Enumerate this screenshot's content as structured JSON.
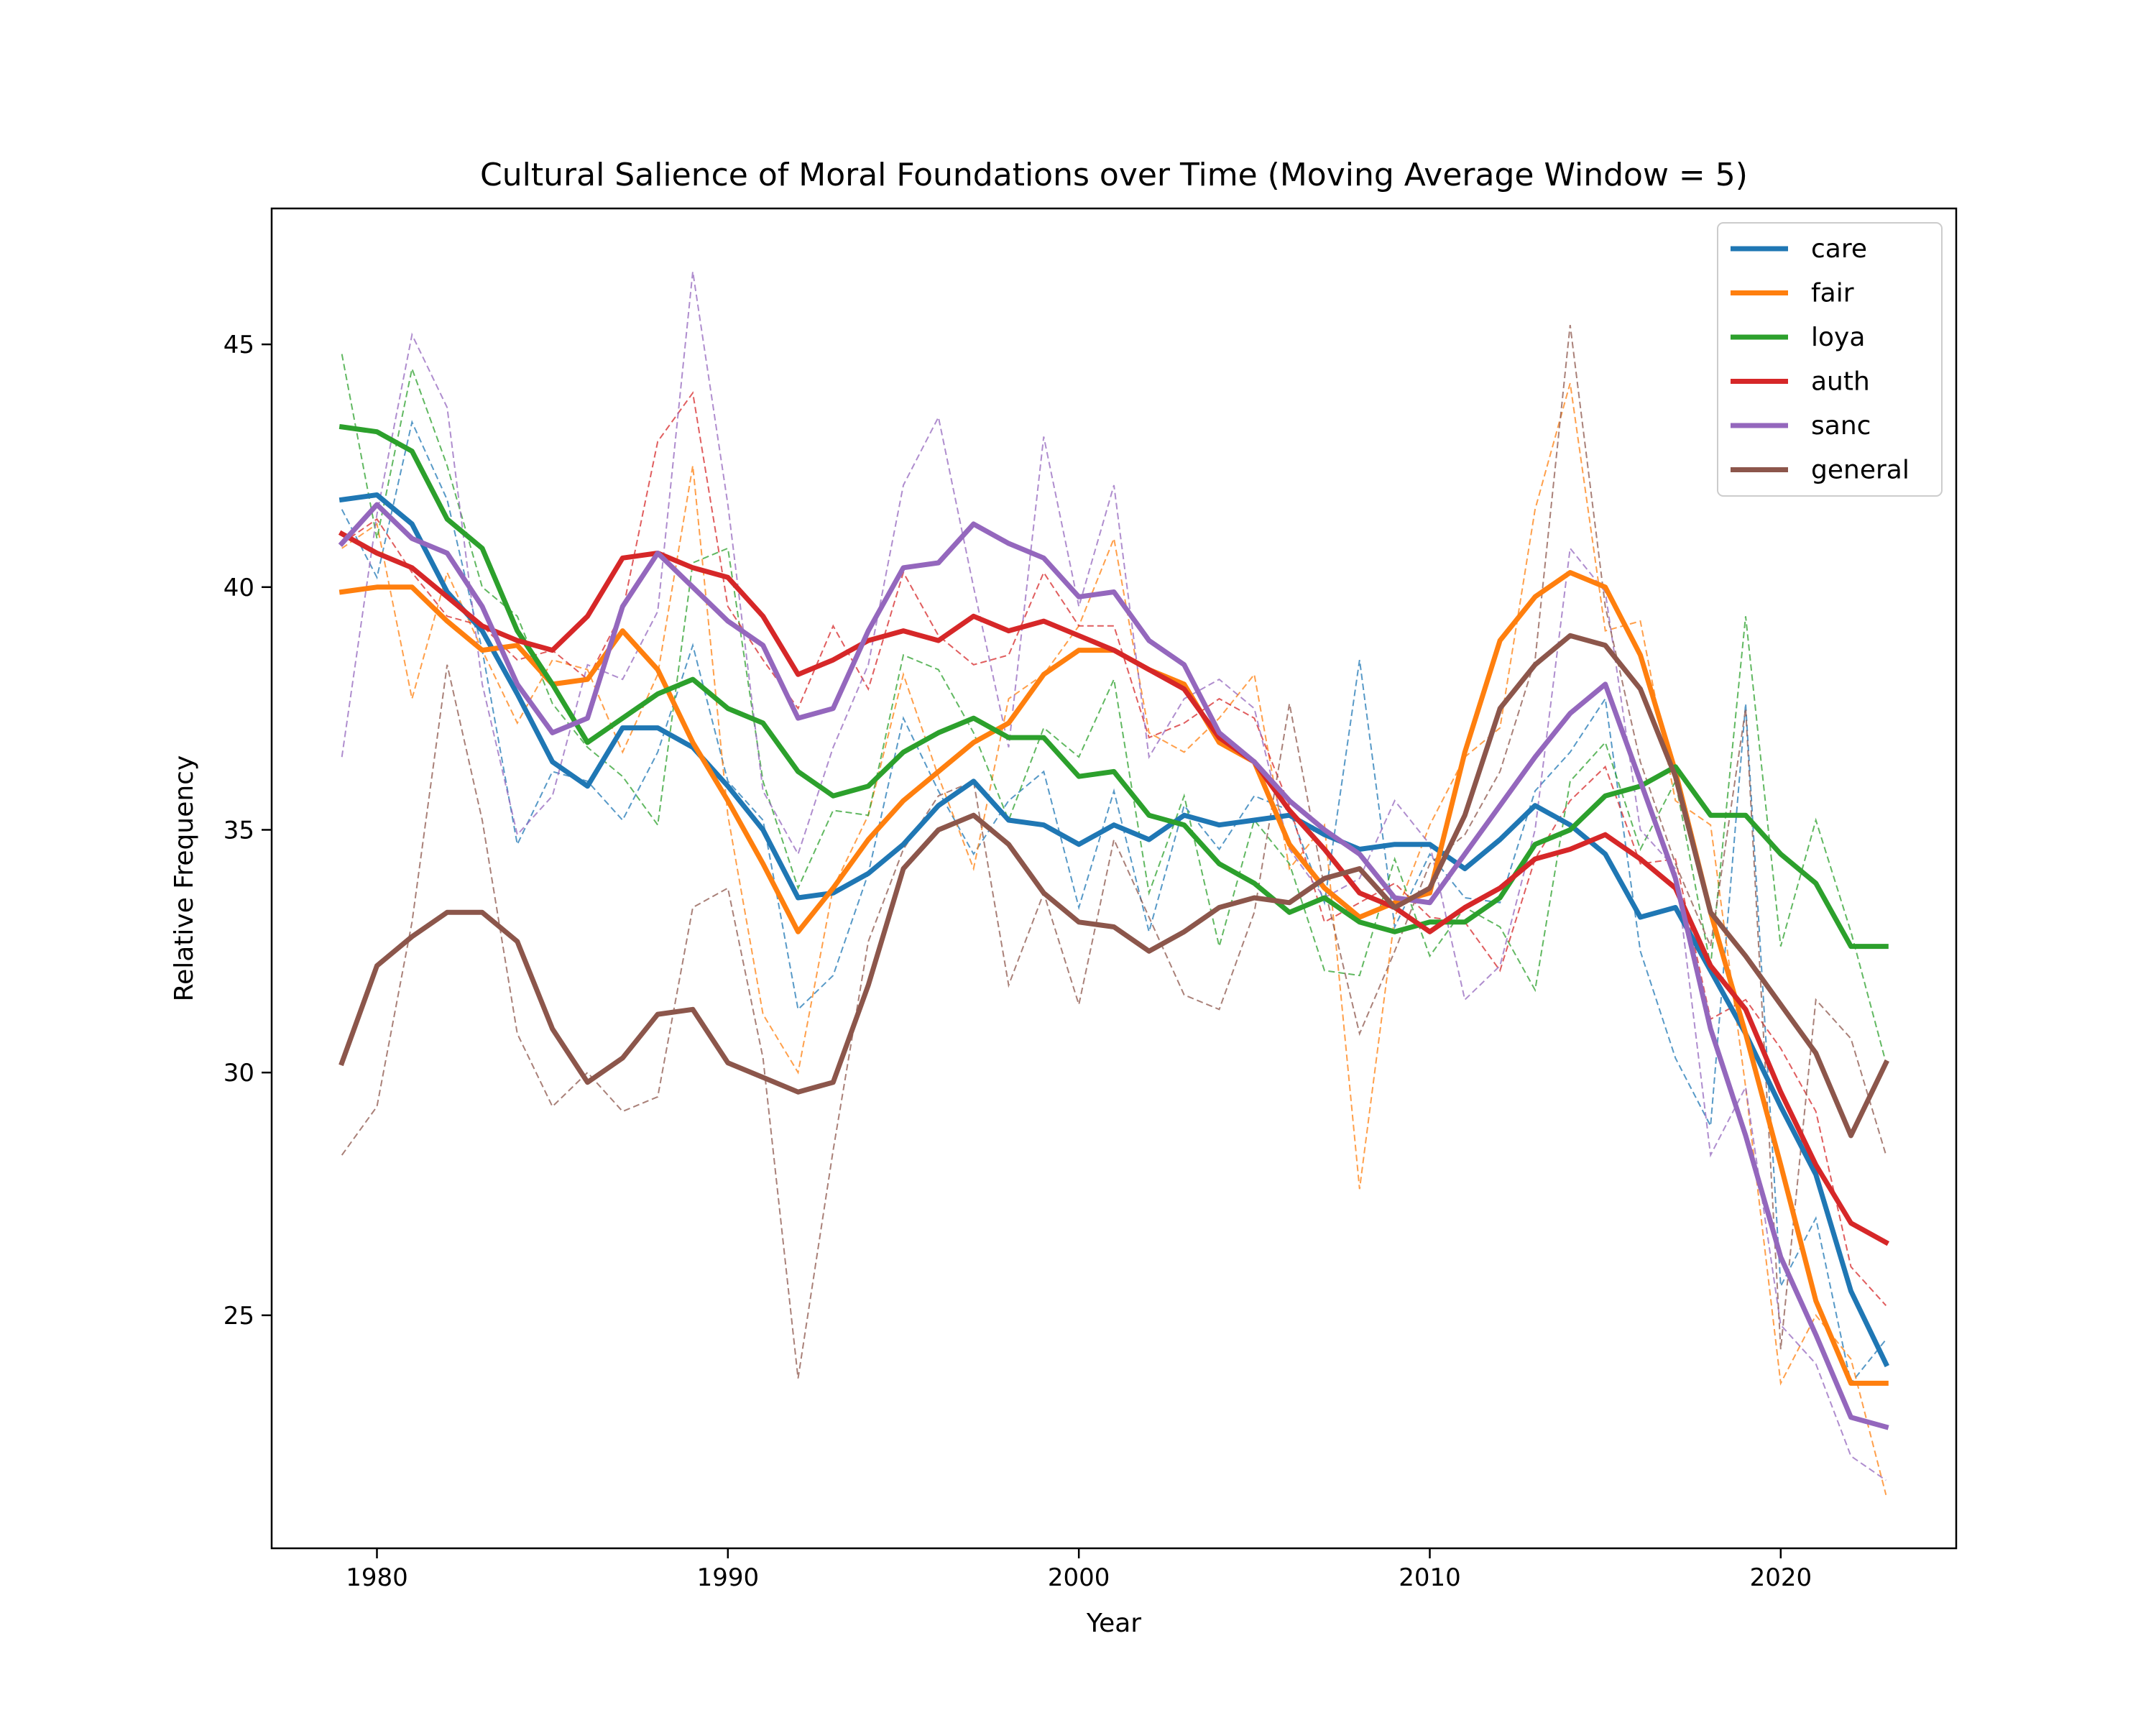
{
  "chart_data": {
    "type": "line",
    "title": "Cultural Salience of Moral Foundations over Time (Moving Average Window = 5)",
    "xlabel": "Year",
    "ylabel": "Relative Frequency",
    "xlim": [
      1977,
      2025
    ],
    "ylim": [
      20.2,
      47.8
    ],
    "xticks": [
      1980,
      1990,
      2000,
      2010,
      2020
    ],
    "yticks": [
      25,
      30,
      35,
      40,
      45
    ],
    "grid": false,
    "legend_position": "top-right",
    "x": [
      1979,
      1980,
      1981,
      1982,
      1983,
      1984,
      1985,
      1986,
      1987,
      1988,
      1989,
      1990,
      1991,
      1992,
      1993,
      1994,
      1995,
      1996,
      1997,
      1998,
      1999,
      2000,
      2001,
      2002,
      2003,
      2004,
      2005,
      2006,
      2007,
      2008,
      2009,
      2010,
      2011,
      2012,
      2013,
      2014,
      2015,
      2016,
      2017,
      2018,
      2019,
      2020,
      2021,
      2022,
      2023
    ],
    "series": [
      {
        "name": "care",
        "color": "#1f77b4",
        "moving_average": [
          41.8,
          41.9,
          41.3,
          39.9,
          39.1,
          37.8,
          36.4,
          35.9,
          37.1,
          37.1,
          36.7,
          35.9,
          35.0,
          33.6,
          33.7,
          34.1,
          34.7,
          35.5,
          36.0,
          35.2,
          35.1,
          34.7,
          35.1,
          34.8,
          35.3,
          35.1,
          35.2,
          35.3,
          34.9,
          34.6,
          34.7,
          34.7,
          34.2,
          34.8,
          35.5,
          35.1,
          34.5,
          33.2,
          33.4,
          32.1,
          30.8,
          29.3,
          27.9,
          25.5,
          24.0
        ],
        "raw": [
          41.6,
          40.2,
          43.4,
          41.8,
          38.7,
          34.7,
          36.2,
          36.0,
          35.2,
          36.6,
          38.8,
          36.0,
          35.2,
          31.3,
          32.0,
          34.1,
          37.3,
          35.8,
          34.5,
          35.6,
          36.2,
          33.4,
          35.8,
          32.9,
          35.5,
          34.6,
          35.7,
          35.4,
          33.5,
          38.5,
          33.0,
          34.5,
          33.6,
          33.5,
          35.8,
          36.6,
          37.7,
          32.5,
          30.3,
          28.9,
          37.6,
          25.6,
          27.0,
          23.6,
          24.5
        ]
      },
      {
        "name": "fair",
        "color": "#ff7f0e",
        "moving_average": [
          39.9,
          40.0,
          40.0,
          39.3,
          38.7,
          38.8,
          38.0,
          38.1,
          39.1,
          38.3,
          36.8,
          35.6,
          34.3,
          32.9,
          33.8,
          34.8,
          35.6,
          36.2,
          36.8,
          37.2,
          38.2,
          38.7,
          38.7,
          38.3,
          38.0,
          36.8,
          36.4,
          34.7,
          33.8,
          33.2,
          33.5,
          33.7,
          36.6,
          38.9,
          39.8,
          40.3,
          40.0,
          38.6,
          36.2,
          33.3,
          30.8,
          28.1,
          25.3,
          23.6,
          23.6
        ],
        "raw": [
          40.8,
          41.3,
          37.7,
          40.3,
          38.7,
          37.2,
          38.5,
          38.3,
          36.6,
          38.2,
          42.5,
          35.3,
          31.2,
          30.0,
          33.8,
          35.3,
          38.2,
          36.1,
          34.2,
          37.7,
          38.2,
          39.2,
          41.0,
          37.0,
          36.6,
          37.3,
          38.2,
          34.2,
          35.1,
          27.6,
          33.2,
          35.1,
          36.5,
          37.1,
          41.6,
          44.2,
          39.1,
          39.3,
          35.6,
          35.1,
          29.7,
          23.6,
          25.0,
          24.1,
          21.3
        ]
      },
      {
        "name": "loya",
        "color": "#2ca02c",
        "moving_average": [
          43.3,
          43.2,
          42.8,
          41.4,
          40.8,
          39.1,
          38.0,
          36.8,
          37.3,
          37.8,
          38.1,
          37.5,
          37.2,
          36.2,
          35.7,
          35.9,
          36.6,
          37.0,
          37.3,
          36.9,
          36.9,
          36.1,
          36.2,
          35.3,
          35.1,
          34.3,
          33.9,
          33.3,
          33.6,
          33.1,
          32.9,
          33.1,
          33.1,
          33.6,
          34.7,
          35.0,
          35.7,
          35.9,
          36.3,
          35.3,
          35.3,
          34.5,
          33.9,
          32.6,
          32.6
        ],
        "raw": [
          44.8,
          41.0,
          44.5,
          42.5,
          40.0,
          39.4,
          37.6,
          36.7,
          36.1,
          35.1,
          40.5,
          40.8,
          36.0,
          33.8,
          35.4,
          35.3,
          38.6,
          38.3,
          37.0,
          35.2,
          37.1,
          36.5,
          38.1,
          33.7,
          35.7,
          32.6,
          35.2,
          34.3,
          32.1,
          32.0,
          34.4,
          32.4,
          33.4,
          33.0,
          31.7,
          36.0,
          36.8,
          34.6,
          36.0,
          32.2,
          39.4,
          32.6,
          35.2,
          32.9,
          30.2
        ]
      },
      {
        "name": "auth",
        "color": "#d62728",
        "moving_average": [
          41.1,
          40.7,
          40.4,
          39.8,
          39.2,
          38.9,
          38.7,
          39.4,
          40.6,
          40.7,
          40.4,
          40.2,
          39.4,
          38.2,
          38.5,
          38.9,
          39.1,
          38.9,
          39.4,
          39.1,
          39.3,
          39.0,
          38.7,
          38.3,
          37.9,
          36.9,
          36.4,
          35.4,
          34.6,
          33.7,
          33.4,
          32.9,
          33.4,
          33.8,
          34.4,
          34.6,
          34.9,
          34.4,
          33.8,
          32.2,
          31.3,
          29.6,
          28.1,
          26.9,
          26.5
        ],
        "raw": [
          40.9,
          41.4,
          40.3,
          39.4,
          39.2,
          38.5,
          38.7,
          38.1,
          39.5,
          43.0,
          44.0,
          39.6,
          38.5,
          37.5,
          39.2,
          37.9,
          40.3,
          39.0,
          38.4,
          38.6,
          40.3,
          39.2,
          39.2,
          36.9,
          37.2,
          37.7,
          37.3,
          35.5,
          33.1,
          33.5,
          33.9,
          33.2,
          33.1,
          32.1,
          34.4,
          35.6,
          36.3,
          34.3,
          34.4,
          31.1,
          31.5,
          30.5,
          29.2,
          26.0,
          25.2
        ]
      },
      {
        "name": "sanc",
        "color": "#9467bd",
        "moving_average": [
          40.9,
          41.7,
          41.0,
          40.7,
          39.6,
          38.0,
          37.0,
          37.3,
          39.6,
          40.7,
          40.0,
          39.3,
          38.8,
          37.3,
          37.5,
          39.1,
          40.4,
          40.5,
          41.3,
          40.9,
          40.6,
          39.8,
          39.9,
          38.9,
          38.4,
          37.0,
          36.4,
          35.6,
          35.0,
          34.5,
          33.6,
          33.5,
          34.5,
          35.5,
          36.5,
          37.4,
          38.0,
          36.0,
          34.0,
          30.9,
          28.7,
          26.2,
          24.6,
          22.9,
          22.7
        ],
        "raw": [
          36.5,
          41.5,
          45.2,
          43.7,
          38.0,
          34.9,
          35.7,
          38.4,
          38.1,
          39.5,
          46.5,
          41.7,
          35.8,
          34.5,
          36.7,
          38.4,
          42.1,
          43.5,
          40.0,
          36.7,
          43.1,
          39.6,
          42.1,
          36.5,
          37.7,
          38.1,
          37.5,
          34.6,
          33.6,
          34.0,
          35.6,
          34.7,
          31.5,
          32.2,
          35.0,
          40.8,
          39.9,
          35.0,
          34.2,
          28.3,
          29.7,
          24.8,
          24.0,
          22.1,
          21.6
        ]
      },
      {
        "name": "general",
        "color": "#8c564b",
        "moving_average": [
          30.2,
          32.2,
          32.8,
          33.3,
          33.3,
          32.7,
          30.9,
          29.8,
          30.3,
          31.2,
          31.3,
          30.2,
          29.9,
          29.6,
          29.8,
          31.8,
          34.2,
          35.0,
          35.3,
          34.7,
          33.7,
          33.1,
          33.0,
          32.5,
          32.9,
          33.4,
          33.6,
          33.5,
          34.0,
          34.2,
          33.4,
          33.8,
          35.3,
          37.5,
          38.4,
          39.0,
          38.8,
          37.9,
          36.1,
          33.3,
          32.4,
          31.4,
          30.4,
          28.7,
          30.2
        ],
        "raw": [
          28.3,
          29.3,
          33.1,
          38.4,
          35.2,
          30.8,
          29.3,
          30.0,
          29.2,
          29.5,
          33.4,
          33.8,
          30.3,
          23.7,
          28.4,
          32.7,
          34.6,
          35.7,
          36.0,
          31.8,
          33.7,
          31.4,
          34.8,
          33.2,
          31.6,
          31.3,
          33.3,
          37.6,
          33.8,
          30.8,
          32.5,
          34.3,
          34.9,
          36.2,
          38.5,
          45.4,
          39.6,
          36.4,
          34.3,
          32.6,
          37.5,
          24.3,
          31.5,
          30.7,
          28.3
        ]
      }
    ]
  }
}
